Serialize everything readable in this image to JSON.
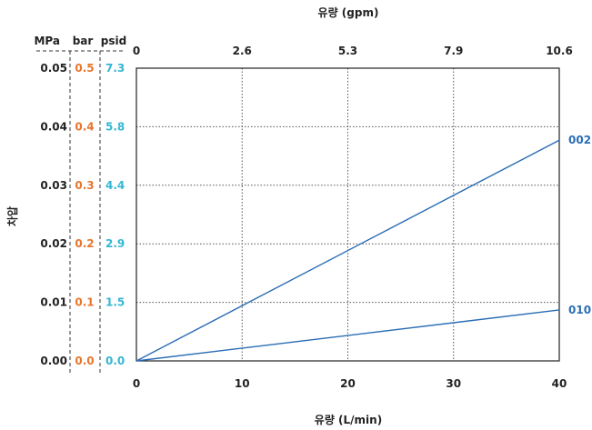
{
  "colors": {
    "series": "#2a6db5",
    "bar": "#e8762d",
    "psid": "#34b6d3",
    "text": "#222222"
  },
  "chart_data": {
    "type": "line",
    "xlabel": "유량 (L/min)",
    "x2label": "유량 (gpm)",
    "ylabel": "차압",
    "xlim": [
      0,
      40
    ],
    "ylim": [
      0,
      0.05
    ],
    "x_ticks": [
      "0",
      "10",
      "20",
      "30",
      "40"
    ],
    "x_tick_values": [
      0,
      10,
      20,
      30,
      40
    ],
    "x2_ticks": [
      "0",
      "2.6",
      "5.3",
      "7.9",
      "10.6"
    ],
    "unit_headers": {
      "mpa": "MPa",
      "bar": "bar",
      "psid": "psid"
    },
    "y_ticks_mpa": [
      "0.00",
      "0.01",
      "0.02",
      "0.03",
      "0.04",
      "0.05"
    ],
    "y_ticks_bar": [
      "0.0",
      "0.1",
      "0.2",
      "0.3",
      "0.4",
      "0.5"
    ],
    "y_ticks_psid": [
      "0.0",
      "1.5",
      "2.9",
      "4.4",
      "5.8",
      "7.3"
    ],
    "y_tick_values": [
      0,
      0.01,
      0.02,
      0.03,
      0.04,
      0.05
    ],
    "grid": true,
    "series": [
      {
        "name": "002",
        "x": [
          0,
          40
        ],
        "y": [
          0,
          0.0377
        ]
      },
      {
        "name": "010",
        "x": [
          0,
          40
        ],
        "y": [
          0,
          0.0087
        ]
      }
    ]
  }
}
